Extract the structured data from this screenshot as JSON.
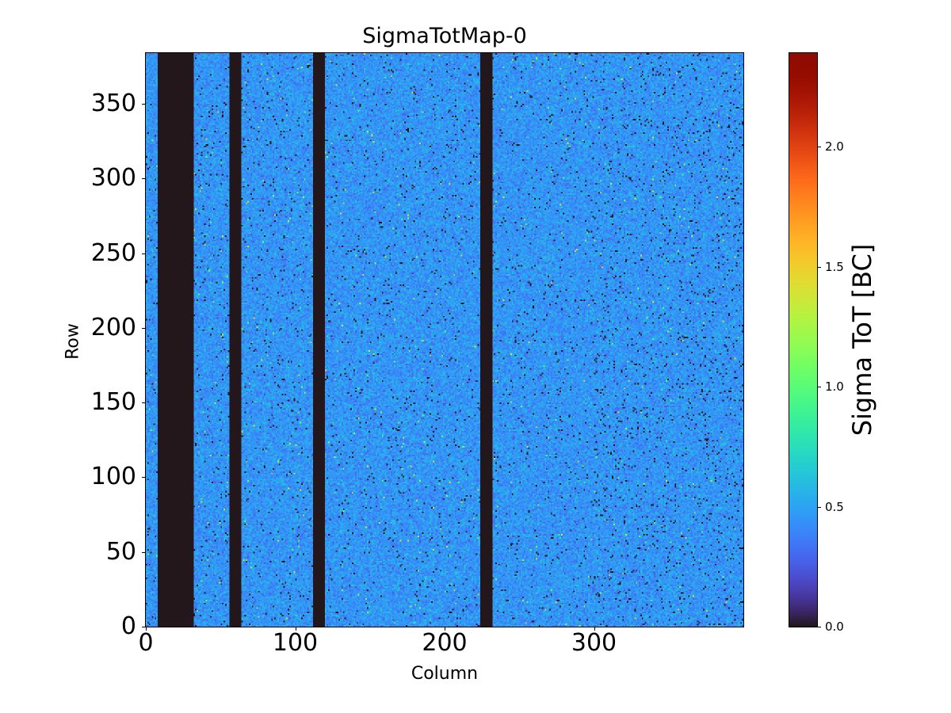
{
  "chart_data": {
    "type": "heatmap",
    "title": "SigmaTotMap-0",
    "xlabel": "Column",
    "ylabel": "Row",
    "colorbar_label": "Sigma ToT [BC]",
    "colormap": "turbo",
    "n_columns": 400,
    "n_rows": 384,
    "xlim": [
      0,
      400
    ],
    "ylim": [
      0,
      384
    ],
    "vlim": [
      0.0,
      2.39
    ],
    "typical_value": 0.45,
    "typical_spread": 0.08,
    "zero_pixel_fraction": 0.02,
    "dead_column_ranges": [
      [
        8,
        32
      ],
      [
        56,
        64
      ],
      [
        112,
        120
      ],
      [
        224,
        232
      ]
    ],
    "xticks": [
      0,
      100,
      200,
      300
    ],
    "xtick_labels": [
      "0",
      "100",
      "200",
      "300"
    ],
    "yticks": [
      0,
      50,
      100,
      150,
      200,
      250,
      300,
      350
    ],
    "ytick_labels": [
      "0",
      "50",
      "100",
      "150",
      "200",
      "250",
      "300",
      "350"
    ],
    "cticks": [
      0.0,
      0.5,
      1.0,
      1.5,
      2.0
    ],
    "ctick_labels": [
      "0.0",
      "0.5",
      "1.0",
      "1.5",
      "2.0"
    ]
  }
}
